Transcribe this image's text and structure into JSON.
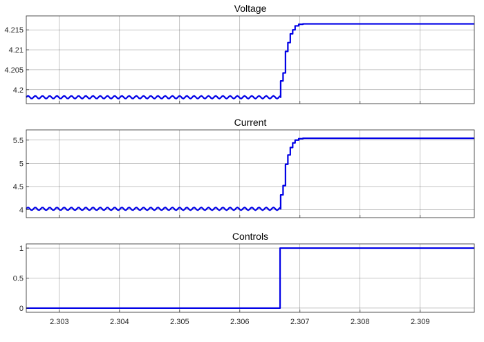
{
  "colors": {
    "series": "#0000e6",
    "axis": "#262626",
    "background": "#ffffff"
  },
  "chart_data": [
    {
      "type": "line",
      "title": "Voltage",
      "xlabel": "",
      "ylabel": "",
      "xlim": [
        2.30245,
        2.3099
      ],
      "ylim": [
        4.1965,
        4.2185
      ],
      "xticks": [
        2.303,
        2.304,
        2.305,
        2.306,
        2.307,
        2.308,
        2.309
      ],
      "yticks": [
        4.2,
        4.205,
        4.21,
        4.215
      ],
      "ytick_labels": [
        "4.2",
        "4.205",
        "4.21",
        "4.215"
      ],
      "show_xtick_labels": false,
      "grid": true,
      "series": [
        {
          "x": [
            2.30245,
            2.30668,
            2.30672,
            2.30676,
            2.3068,
            2.30684,
            2.30688,
            2.30692,
            2.30698,
            2.30705,
            2.30715,
            2.3099
          ],
          "y": [
            4.1981,
            4.1981,
            4.2022,
            4.2042,
            4.2096,
            4.2118,
            4.214,
            4.215,
            4.216,
            4.2164,
            4.2165,
            4.2165
          ],
          "ripple": 0.00035,
          "ripple_until": 2.30668,
          "ripple_period": 0.00012
        }
      ]
    },
    {
      "type": "line",
      "title": "Current",
      "xlabel": "",
      "ylabel": "",
      "xlim": [
        2.30245,
        2.3099
      ],
      "ylim": [
        3.83,
        5.72
      ],
      "xticks": [
        2.303,
        2.304,
        2.305,
        2.306,
        2.307,
        2.308,
        2.309
      ],
      "yticks": [
        4,
        4.5,
        5,
        5.5
      ],
      "ytick_labels": [
        "4",
        "4.5",
        "5",
        "5.5"
      ],
      "show_xtick_labels": false,
      "grid": true,
      "series": [
        {
          "x": [
            2.30245,
            2.30668,
            2.30672,
            2.30676,
            2.3068,
            2.30684,
            2.30688,
            2.30692,
            2.30698,
            2.30705,
            2.30715,
            2.3099
          ],
          "y": [
            4.02,
            4.02,
            4.32,
            4.52,
            4.98,
            5.18,
            5.34,
            5.44,
            5.5,
            5.53,
            5.54,
            5.54
          ],
          "ripple": 0.03,
          "ripple_until": 2.30668,
          "ripple_period": 0.00012
        }
      ]
    },
    {
      "type": "line",
      "title": "Controls",
      "xlabel": "",
      "ylabel": "",
      "xlim": [
        2.30245,
        2.3099
      ],
      "ylim": [
        -0.07,
        1.07
      ],
      "xticks": [
        2.303,
        2.304,
        2.305,
        2.306,
        2.307,
        2.308,
        2.309
      ],
      "yticks": [
        0,
        0.5,
        1
      ],
      "ytick_labels": [
        "0",
        "0.5",
        "1"
      ],
      "xtick_labels": [
        "2.303",
        "2.304",
        "2.305",
        "2.306",
        "2.307",
        "2.308",
        "2.309"
      ],
      "show_xtick_labels": true,
      "grid": true,
      "series": [
        {
          "x": [
            2.30245,
            2.30667,
            2.30667,
            2.3099
          ],
          "y": [
            0,
            0,
            1,
            1
          ],
          "ripple": 0,
          "ripple_until": 2.30245,
          "ripple_period": 0.00012
        }
      ]
    }
  ]
}
